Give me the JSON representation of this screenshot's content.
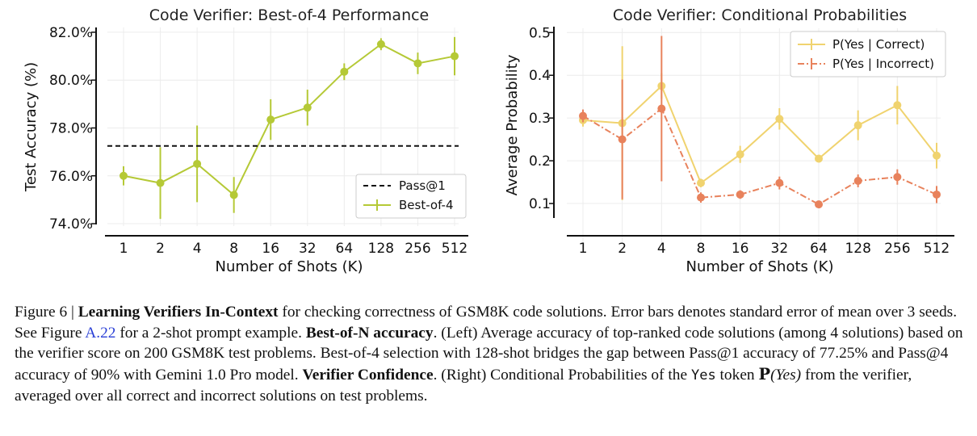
{
  "colors": {
    "best_of_4": "#b5c936",
    "pass1": "#111111",
    "p_yes_correct": "#f0d36f",
    "p_yes_incorrect": "#e8825c",
    "link": "#2a3fd6"
  },
  "chart_data": [
    {
      "type": "line",
      "title": "Code Verifier: Best-of-4 Performance",
      "xlabel": "Number of Shots (K)",
      "ylabel": "Test Accuracy (%)",
      "categories": [
        "1",
        "2",
        "4",
        "8",
        "16",
        "32",
        "64",
        "128",
        "256",
        "512"
      ],
      "y_ticks": [
        "74.0%",
        "76.0%",
        "78.0%",
        "80.0%",
        "82.0%"
      ],
      "ylim": [
        73.9,
        82.2
      ],
      "grid": true,
      "legend_position": "lower-right",
      "series": [
        {
          "name": "Best-of-4",
          "values": [
            76.0,
            75.7,
            76.5,
            75.2,
            78.35,
            78.85,
            80.35,
            81.5,
            80.7,
            81.0
          ],
          "errors": [
            0.4,
            1.5,
            1.6,
            0.75,
            0.85,
            0.75,
            0.35,
            0.25,
            0.45,
            0.8
          ]
        },
        {
          "name": "Pass@1",
          "constant": 77.25,
          "style": "dashed"
        }
      ]
    },
    {
      "type": "line",
      "title": "Code Verifier: Conditional Probabilities",
      "xlabel": "Number of Shots (K)",
      "ylabel": "Average Probability",
      "categories": [
        "1",
        "2",
        "4",
        "8",
        "16",
        "32",
        "64",
        "128",
        "256",
        "512"
      ],
      "y_ticks": [
        "0.1",
        "0.2",
        "0.3",
        "0.4",
        "0.5"
      ],
      "ylim": [
        0.0,
        0.51
      ],
      "grid": true,
      "legend_position": "top-right",
      "series": [
        {
          "name": "P(Yes | Correct)",
          "values": [
            0.295,
            0.288,
            0.375,
            0.148,
            0.215,
            0.298,
            0.205,
            0.283,
            0.33,
            0.212
          ],
          "errors": [
            0.015,
            0.18,
            0.03,
            0.01,
            0.02,
            0.025,
            0.006,
            0.035,
            0.045,
            0.03
          ]
        },
        {
          "name": "P(Yes | Incorrect)",
          "values": [
            0.305,
            0.25,
            0.322,
            0.114,
            0.121,
            0.148,
            0.098,
            0.153,
            0.162,
            0.121
          ],
          "errors": [
            0.015,
            0.14,
            0.17,
            0.012,
            0.01,
            0.015,
            0.006,
            0.015,
            0.018,
            0.02
          ]
        }
      ]
    }
  ],
  "caption": {
    "prefix": "Figure 6 | ",
    "title_bold": "Learning Verifiers In-Context",
    "p1": " for checking correctness of GSM8K code solutions. Error bars denotes standard error of mean over 3 seeds. See Figure ",
    "link": "A.22",
    "p2": " for a 2-shot prompt example. ",
    "bold2": "Best-of-N accuracy",
    "p3": ". (Left) Average accuracy of top-ranked code solutions (among 4 solutions) based on the verifier score on 200 GSM8K test problems. Best-of-4 selection with 128-shot bridges the gap between Pass@1 accuracy of 77.25% and Pass@4 accuracy of 90% with Gemini 1.0 Pro model. ",
    "bold3": "Verifier Confidence",
    "p4": ". (Right) Conditional Probabilities of the ",
    "token": "Yes",
    "p5": " token ",
    "prob_symbol": "P",
    "prob_arg": "(Yes)",
    "p6": " from the verifier, averaged over all correct and incorrect solutions on test problems."
  }
}
